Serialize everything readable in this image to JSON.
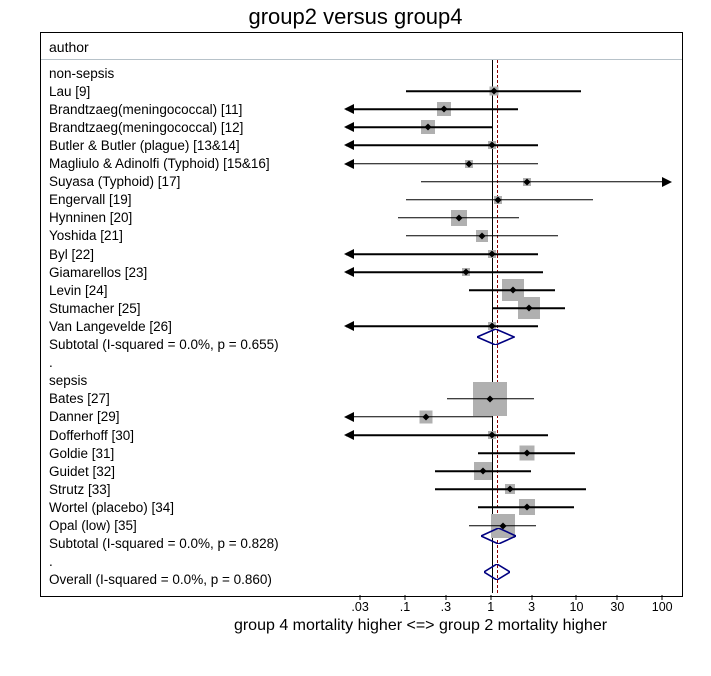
{
  "title": "group2 versus group4",
  "header_label": "author",
  "x_caption": "group 4 mortality higher <=> group 2 mortality higher",
  "chart": {
    "type": "forest",
    "log_scale": true,
    "xmin": 0.02,
    "xmax": 120,
    "ticks": [
      0.03,
      0.1,
      0.3,
      1,
      3,
      10,
      30,
      100
    ],
    "tick_labels": [
      ".03",
      ".1",
      ".3",
      "1",
      "3",
      "10",
      "30",
      "100"
    ],
    "ref_solid": 1,
    "ref_dashed": 1.15,
    "row_height": 18.1,
    "top_pad": 4,
    "colors": {
      "marker_fill": "#b0b0b0",
      "line": "#000000",
      "diamond_stroke": "#000080",
      "diamond_fill": "none",
      "dashed": "#8b0000",
      "background": "#ffffff"
    }
  },
  "rows": [
    {
      "label": "non-sepsis",
      "type": "group"
    },
    {
      "label": "Lau [9]",
      "type": "study",
      "est": 1.05,
      "lo": 0.1,
      "hi": 11.0,
      "sq": 9
    },
    {
      "label": "Brandtzaeg(meningococcal) [11]",
      "type": "study",
      "est": 0.28,
      "lo": 0.018,
      "hi": 2.0,
      "sq": 14,
      "arrow_lo": true
    },
    {
      "label": "Brandtzaeg(meningococcal) [12]",
      "type": "study",
      "est": 0.18,
      "lo": 0.018,
      "hi": 1.0,
      "sq": 14,
      "arrow_lo": true
    },
    {
      "label": "Butler & Butler (plague) [13&14]",
      "type": "study",
      "est": 1.0,
      "lo": 0.018,
      "hi": 3.5,
      "sq": 8,
      "arrow_lo": true
    },
    {
      "label": "Magliulo & Adinolfi (Typhoid) [15&16]",
      "type": "study",
      "est": 0.55,
      "lo": 0.018,
      "hi": 3.5,
      "sq": 8,
      "arrow_lo": true
    },
    {
      "label": "Suyasa (Typhoid) [17]",
      "type": "study",
      "est": 2.6,
      "lo": 0.15,
      "hi": 130,
      "sq": 8,
      "arrow_hi": true
    },
    {
      "label": "Engervall [19]",
      "type": "study",
      "est": 1.2,
      "lo": 0.1,
      "hi": 15.0,
      "sq": 8
    },
    {
      "label": "Hynninen [20]",
      "type": "study",
      "est": 0.42,
      "lo": 0.08,
      "hi": 2.1,
      "sq": 16
    },
    {
      "label": "Yoshida [21]",
      "type": "study",
      "est": 0.78,
      "lo": 0.1,
      "hi": 6.0,
      "sq": 12
    },
    {
      "label": "Byl [22]",
      "type": "study",
      "est": 1.0,
      "lo": 0.018,
      "hi": 3.5,
      "sq": 8,
      "arrow_lo": true
    },
    {
      "label": "Giamarellos [23]",
      "type": "study",
      "est": 0.5,
      "lo": 0.018,
      "hi": 4.0,
      "sq": 8,
      "arrow_lo": true
    },
    {
      "label": "Levin [24]",
      "type": "study",
      "est": 1.75,
      "lo": 0.55,
      "hi": 5.5,
      "sq": 22
    },
    {
      "label": "Stumacher [25]",
      "type": "study",
      "est": 2.7,
      "lo": 1.0,
      "hi": 7.2,
      "sq": 22
    },
    {
      "label": "Van Langevelde [26]",
      "type": "study",
      "est": 1.0,
      "lo": 0.018,
      "hi": 3.5,
      "sq": 8,
      "arrow_lo": true
    },
    {
      "label": "Subtotal  (I-squared = 0.0%, p = 0.655)",
      "type": "diamond",
      "est": 1.12,
      "lo": 0.68,
      "hi": 1.85
    },
    {
      "label": ".",
      "type": "spacer"
    },
    {
      "label": "sepsis",
      "type": "group"
    },
    {
      "label": "Bates [27]",
      "type": "study",
      "est": 0.95,
      "lo": 0.3,
      "hi": 3.1,
      "sq": 34
    },
    {
      "label": "Danner [29]",
      "type": "study",
      "est": 0.17,
      "lo": 0.018,
      "hi": 1.0,
      "sq": 13,
      "arrow_lo": true
    },
    {
      "label": "Dofferhoff [30]",
      "type": "study",
      "est": 1.0,
      "lo": 0.018,
      "hi": 4.5,
      "sq": 8,
      "arrow_lo": true
    },
    {
      "label": "Goldie [31]",
      "type": "study",
      "est": 2.55,
      "lo": 0.7,
      "hi": 9.3,
      "sq": 15
    },
    {
      "label": "Guidet [32]",
      "type": "study",
      "est": 0.8,
      "lo": 0.22,
      "hi": 2.9,
      "sq": 18
    },
    {
      "label": "Strutz [33]",
      "type": "study",
      "est": 1.65,
      "lo": 0.22,
      "hi": 12.5,
      "sq": 10
    },
    {
      "label": "Wortel (placebo) [34]",
      "type": "study",
      "est": 2.6,
      "lo": 0.7,
      "hi": 9.2,
      "sq": 16
    },
    {
      "label": "Opal (low) [35]",
      "type": "study",
      "est": 1.35,
      "lo": 0.55,
      "hi": 3.3,
      "sq": 24
    },
    {
      "label": "Subtotal  (I-squared = 0.0%, p = 0.828)",
      "type": "diamond",
      "est": 1.2,
      "lo": 0.75,
      "hi": 1.92
    },
    {
      "label": ".",
      "type": "spacer"
    },
    {
      "label": "Overall  (I-squared = 0.0%, p = 0.860)",
      "type": "diamond",
      "est": 1.16,
      "lo": 0.82,
      "hi": 1.65
    }
  ]
}
